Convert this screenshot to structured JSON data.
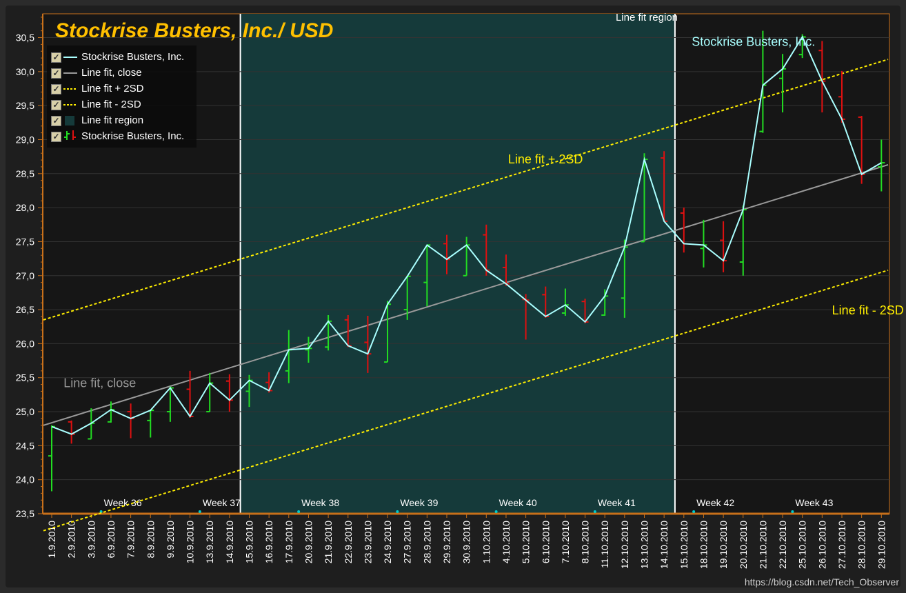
{
  "chart_data": {
    "type": "line",
    "title": "Stockrise Busters, Inc./ USD",
    "ylim": [
      23.5,
      30.85
    ],
    "y_ticks": [
      "23,5",
      "24,0",
      "24,5",
      "25,0",
      "25,5",
      "26,0",
      "26,5",
      "27,0",
      "27,5",
      "28,0",
      "28,5",
      "29,0",
      "29,5",
      "30,0",
      "30,5"
    ],
    "grid": true,
    "legend_placement": "top-left",
    "categories": [
      "1.9.2010",
      "2.9.2010",
      "3.9.2010",
      "6.9.2010",
      "7.9.2010",
      "8.9.2010",
      "9.9.2010",
      "10.9.2010",
      "13.9.2010",
      "14.9.2010",
      "15.9.2010",
      "16.9.2010",
      "17.9.2010",
      "20.9.2010",
      "21.9.2010",
      "22.9.2010",
      "23.9.2010",
      "24.9.2010",
      "27.9.2010",
      "28.9.2010",
      "29.9.2010",
      "30.9.2010",
      "1.10.2010",
      "4.10.2010",
      "5.10.2010",
      "6.10.2010",
      "7.10.2010",
      "8.10.2010",
      "11.10.2010",
      "12.10.2010",
      "13.10.2010",
      "14.10.2010",
      "15.10.2010",
      "18.10.2010",
      "19.10.2010",
      "20.10.2010",
      "21.10.2010",
      "22.10.2010",
      "25.10.2010",
      "26.10.2010",
      "27.10.2010",
      "28.10.2010",
      "29.10.2010"
    ],
    "weeks": [
      {
        "label": "Week 36",
        "after_index": 2
      },
      {
        "label": "Week 37",
        "after_index": 7
      },
      {
        "label": "Week 38",
        "after_index": 12
      },
      {
        "label": "Week 39",
        "after_index": 17
      },
      {
        "label": "Week 40",
        "after_index": 22
      },
      {
        "label": "Week 41",
        "after_index": 27
      },
      {
        "label": "Week 42",
        "after_index": 32
      },
      {
        "label": "Week 43",
        "after_index": 37
      }
    ],
    "series": [
      {
        "name": "Stockrise Busters, Inc.",
        "kind": "close-line",
        "color": "#aaffff",
        "values": [
          24.78,
          24.67,
          24.83,
          25.03,
          24.9,
          25.02,
          25.35,
          24.93,
          25.42,
          25.17,
          25.46,
          25.31,
          25.91,
          25.93,
          26.33,
          25.97,
          25.85,
          26.58,
          26.99,
          27.45,
          27.24,
          27.45,
          27.08,
          26.88,
          26.64,
          26.4,
          26.57,
          26.32,
          26.7,
          27.42,
          28.71,
          27.8,
          27.47,
          27.45,
          27.22,
          27.97,
          29.8,
          30.04,
          30.51,
          29.86,
          29.3,
          28.49,
          28.66
        ]
      },
      {
        "name": "Stockrise Busters, Inc.",
        "kind": "ohlc",
        "up_color": "#22dd22",
        "down_color": "#e01010",
        "open": [
          24.35,
          24.85,
          24.6,
          24.85,
          25.0,
          24.87,
          25.0,
          25.33,
          25.0,
          25.45,
          25.3,
          25.43,
          25.6,
          25.91,
          25.95,
          26.35,
          26.02,
          25.73,
          26.5,
          26.9,
          27.47,
          27.0,
          27.6,
          27.12,
          26.65,
          26.72,
          26.45,
          26.62,
          26.42,
          26.67,
          27.5,
          28.73,
          27.92,
          27.4,
          27.52,
          27.2,
          29.12,
          29.9,
          30.25,
          30.31,
          29.63,
          29.33,
          28.6
        ],
        "high": [
          24.8,
          24.87,
          25.05,
          25.15,
          25.12,
          25.02,
          25.37,
          25.6,
          25.57,
          25.55,
          25.54,
          25.58,
          26.2,
          26.1,
          26.42,
          26.42,
          26.41,
          26.63,
          27.0,
          27.45,
          27.6,
          27.57,
          27.75,
          27.31,
          26.73,
          26.84,
          26.81,
          26.66,
          26.8,
          27.53,
          28.8,
          28.83,
          28.0,
          27.82,
          27.8,
          28.03,
          30.6,
          30.26,
          30.55,
          30.45,
          30.01,
          29.35,
          29.0
        ],
        "low": [
          23.83,
          24.53,
          24.6,
          24.84,
          24.61,
          24.62,
          24.85,
          24.91,
          25.0,
          25.0,
          25.07,
          25.28,
          25.42,
          25.72,
          25.9,
          25.95,
          25.57,
          25.73,
          26.35,
          26.55,
          27.02,
          27.0,
          27.0,
          26.85,
          26.06,
          26.38,
          26.41,
          26.3,
          26.41,
          26.38,
          27.5,
          27.8,
          27.34,
          27.12,
          27.05,
          27.0,
          29.1,
          29.4,
          30.2,
          29.4,
          29.25,
          28.35,
          28.24
        ],
        "close": [
          24.78,
          24.67,
          24.83,
          25.03,
          24.9,
          25.02,
          25.35,
          24.93,
          25.42,
          25.17,
          25.46,
          25.31,
          25.91,
          25.93,
          26.33,
          25.97,
          25.85,
          26.58,
          26.99,
          27.45,
          27.24,
          27.45,
          27.08,
          26.88,
          26.64,
          26.4,
          26.57,
          26.32,
          26.7,
          27.42,
          28.71,
          27.8,
          27.47,
          27.45,
          27.22,
          27.97,
          29.8,
          30.04,
          30.51,
          29.86,
          29.3,
          28.49,
          28.66
        ]
      },
      {
        "name": "Line fit, close",
        "kind": "fit",
        "color": "#9a9a9a",
        "start_value": 24.8,
        "end_value": 28.63
      },
      {
        "name": "Line fit + 2SD",
        "kind": "fit-band",
        "color": "#ffee00",
        "start_value": 26.35,
        "end_value": 30.18
      },
      {
        "name": "Line fit - 2SD",
        "kind": "fit-band",
        "color": "#ffee00",
        "start_value": 23.25,
        "end_value": 27.08
      }
    ],
    "region": {
      "name": "Line fit region",
      "from_index": 10,
      "to_index": 32,
      "color": "#153a3a"
    },
    "annotations": [
      {
        "text": "Line fit, close",
        "color": "#9a9a9a",
        "x_index": 0.6,
        "y": 25.36
      },
      {
        "text": "Line fit + 2SD",
        "color": "#ffee00",
        "x_index": 23.1,
        "y": 28.65
      },
      {
        "text": "Line fit - 2SD",
        "color": "#ffee00",
        "x_index": 39.5,
        "y": 26.43
      },
      {
        "text": "Stockrise Busters, Inc.",
        "color": "#aaffff",
        "x_index": 32.4,
        "y": 30.38
      },
      {
        "text": "Line fit region",
        "color": "#ffffff",
        "x_index": 28.55,
        "y": 30.75
      }
    ]
  },
  "legend": {
    "items": [
      {
        "label": "Stockrise Busters, Inc.",
        "swatch": "line",
        "color": "#aaffff"
      },
      {
        "label": "Line fit, close",
        "swatch": "line",
        "color": "#9a9a9a"
      },
      {
        "label": "Line fit + 2SD",
        "swatch": "dash",
        "color": "#ffee00"
      },
      {
        "label": "Line fit - 2SD",
        "swatch": "dash",
        "color": "#ffee00"
      },
      {
        "label": "Line fit region",
        "swatch": "box",
        "color": "#153a3a"
      },
      {
        "label": "Stockrise Busters, Inc.",
        "swatch": "ohlc",
        "color": "#22dd22"
      }
    ]
  },
  "watermark": "https://blog.csdn.net/Tech_Observer"
}
